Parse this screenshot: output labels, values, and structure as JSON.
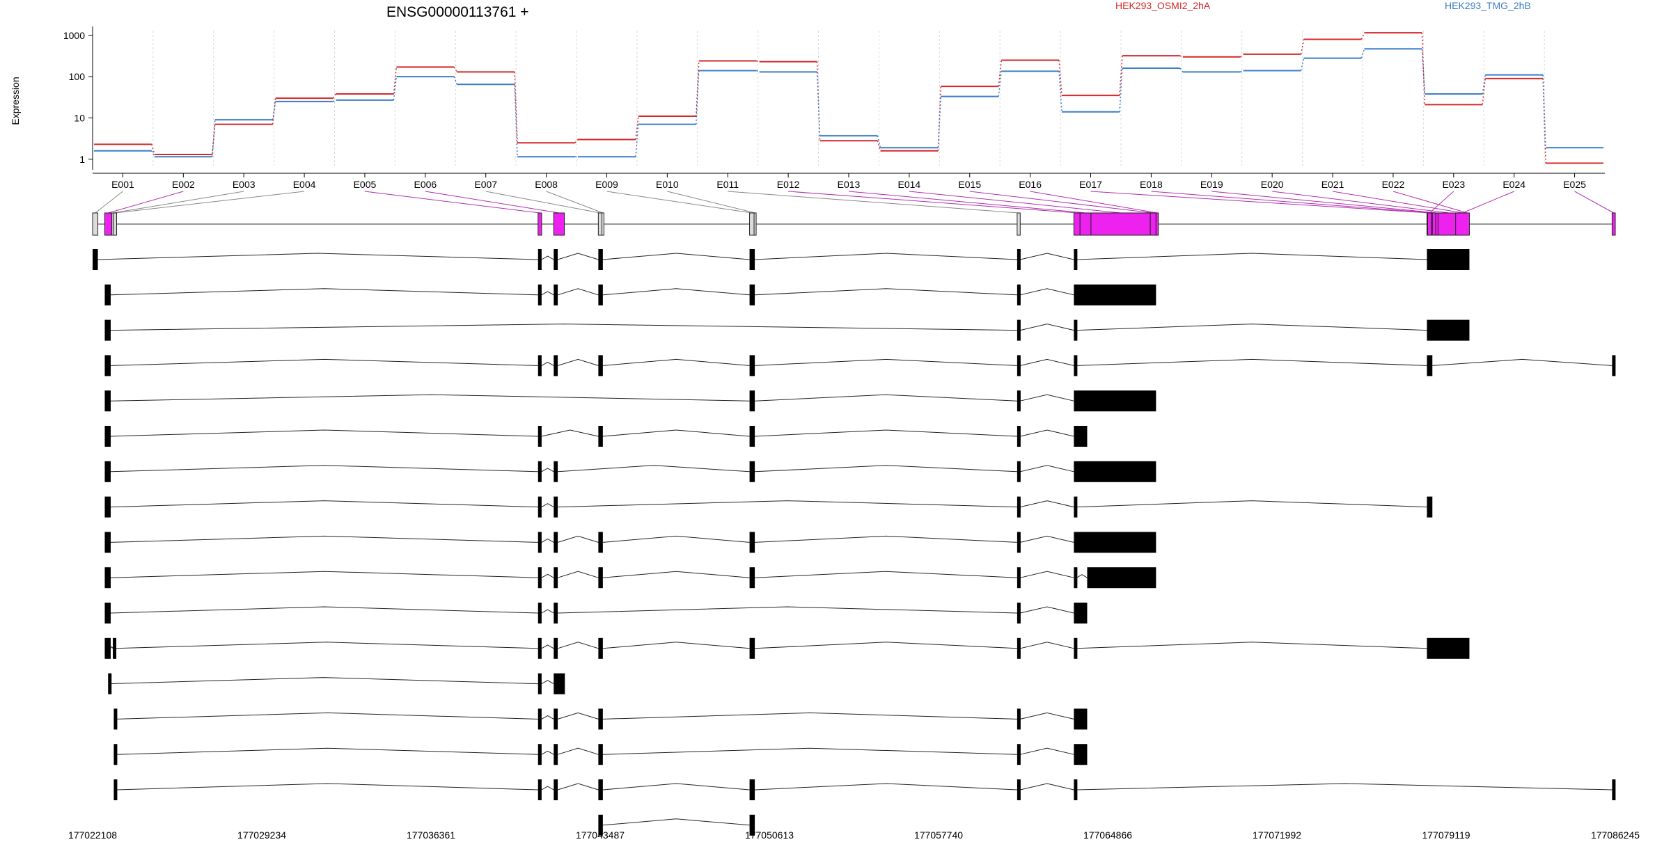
{
  "chart_data": {
    "type": "line",
    "title": "ENSG00000113761 +",
    "ylabel": "Expression",
    "yscale": "log",
    "ylim": [
      0.7,
      1300
    ],
    "yticks": [
      "1",
      "10",
      "100",
      "1000"
    ],
    "ytick_values": [
      1,
      10,
      100,
      1000
    ],
    "categories": [
      "E001",
      "E002",
      "E003",
      "E004",
      "E005",
      "E006",
      "E007",
      "E008",
      "E009",
      "E010",
      "E011",
      "E012",
      "E013",
      "E014",
      "E015",
      "E016",
      "E017",
      "E018",
      "E019",
      "E020",
      "E021",
      "E022",
      "E023",
      "E024",
      "E025"
    ],
    "series": [
      {
        "name": "HEK293_OSMI2_2hA",
        "color": "#d62728",
        "values": [
          2.3,
          1.3,
          7,
          30,
          38,
          170,
          130,
          2.5,
          3,
          11,
          240,
          230,
          2.8,
          1.6,
          58,
          250,
          35,
          320,
          300,
          350,
          800,
          1150,
          21,
          90,
          0.8
        ]
      },
      {
        "name": "HEK293_TMG_2hB",
        "color": "#3a7dc9",
        "values": [
          1.6,
          1.15,
          9,
          25,
          27,
          100,
          65,
          1.15,
          1.15,
          7,
          140,
          130,
          3.7,
          1.9,
          33,
          135,
          14,
          160,
          130,
          140,
          280,
          470,
          38,
          110,
          1.9
        ]
      }
    ],
    "genome_axis": {
      "ticks": [
        "177022108",
        "177029234",
        "177036361",
        "177043487",
        "177050613",
        "177057740",
        "177064866",
        "177071992",
        "177079119",
        "177086245"
      ],
      "tick_values": [
        177022108,
        177029234,
        177036361,
        177043487,
        177050613,
        177057740,
        177064866,
        177071992,
        177079119,
        177086245
      ],
      "range": [
        177022108,
        177086245
      ]
    },
    "exon_bins": [
      {
        "id": "E001",
        "start": 177022108,
        "end": 177022330,
        "sig": false
      },
      {
        "id": "E002",
        "start": 177022620,
        "end": 177022920,
        "sig": true
      },
      {
        "id": "E003",
        "start": 177022920,
        "end": 177022960,
        "sig": false
      },
      {
        "id": "E004",
        "start": 177023000,
        "end": 177023120,
        "sig": false
      },
      {
        "id": "E005",
        "start": 177040870,
        "end": 177041020,
        "sig": true
      },
      {
        "id": "E006",
        "start": 177041530,
        "end": 177041980,
        "sig": true
      },
      {
        "id": "E007",
        "start": 177043410,
        "end": 177043560,
        "sig": false
      },
      {
        "id": "E008",
        "start": 177043560,
        "end": 177043600,
        "sig": false
      },
      {
        "id": "E009",
        "start": 177049780,
        "end": 177049970,
        "sig": false
      },
      {
        "id": "E010",
        "start": 177049970,
        "end": 177050000,
        "sig": false
      },
      {
        "id": "E011",
        "start": 177061050,
        "end": 177061180,
        "sig": false
      },
      {
        "id": "E012",
        "start": 177063440,
        "end": 177063700,
        "sig": true
      },
      {
        "id": "E013",
        "start": 177063700,
        "end": 177064160,
        "sig": true
      },
      {
        "id": "E014",
        "start": 177064160,
        "end": 177066660,
        "sig": true
      },
      {
        "id": "E015",
        "start": 177066660,
        "end": 177066900,
        "sig": true
      },
      {
        "id": "E016",
        "start": 177066900,
        "end": 177067000,
        "sig": true
      },
      {
        "id": "E017",
        "start": 177078310,
        "end": 177078540,
        "sig": true
      },
      {
        "id": "E018",
        "start": 177078540,
        "end": 177078680,
        "sig": true
      },
      {
        "id": "E019",
        "start": 177078680,
        "end": 177078780,
        "sig": true
      },
      {
        "id": "E020",
        "start": 177078780,
        "end": 177079720,
        "sig": true
      },
      {
        "id": "E021",
        "start": 177079720,
        "end": 177079940,
        "sig": true
      },
      {
        "id": "E022",
        "start": 177079940,
        "end": 177080080,
        "sig": true
      },
      {
        "id": "E023",
        "start": 177078340,
        "end": 177078500,
        "sig": true
      },
      {
        "id": "E024",
        "start": 177079520,
        "end": 177080100,
        "sig": true
      },
      {
        "id": "E025",
        "start": 177086110,
        "end": 177086245,
        "sig": true
      }
    ],
    "transcripts": [
      {
        "exons": [
          [
            177022108,
            177022330
          ],
          [
            177040870,
            177041020
          ],
          [
            177041530,
            177041700
          ],
          [
            177043410,
            177043600
          ],
          [
            177049780,
            177050000
          ],
          [
            177061050,
            177061180
          ],
          [
            177063440,
            177063560
          ],
          [
            177078310,
            177080100
          ]
        ]
      },
      {
        "exons": [
          [
            177022620,
            177022870
          ],
          [
            177040870,
            177041020
          ],
          [
            177041530,
            177041700
          ],
          [
            177043410,
            177043600
          ],
          [
            177049780,
            177050000
          ],
          [
            177061050,
            177061180
          ],
          [
            177063440,
            177066900
          ]
        ]
      },
      {
        "exons": [
          [
            177022620,
            177022870
          ],
          [
            177061050,
            177061180
          ],
          [
            177063440,
            177063560
          ],
          [
            177078310,
            177080100
          ]
        ]
      },
      {
        "exons": [
          [
            177022620,
            177022870
          ],
          [
            177040870,
            177041020
          ],
          [
            177041530,
            177041700
          ],
          [
            177043410,
            177043600
          ],
          [
            177049780,
            177050000
          ],
          [
            177061050,
            177061180
          ],
          [
            177063440,
            177063560
          ],
          [
            177078310,
            177078540
          ],
          [
            177086110,
            177086245
          ]
        ]
      },
      {
        "exons": [
          [
            177022620,
            177022870
          ],
          [
            177049780,
            177050000
          ],
          [
            177061050,
            177061180
          ],
          [
            177063440,
            177066900
          ]
        ]
      },
      {
        "exons": [
          [
            177022620,
            177022870
          ],
          [
            177040870,
            177041020
          ],
          [
            177043410,
            177043600
          ],
          [
            177049780,
            177050000
          ],
          [
            177061050,
            177061180
          ],
          [
            177063440,
            177064000
          ]
        ]
      },
      {
        "exons": [
          [
            177022620,
            177022870
          ],
          [
            177040870,
            177041020
          ],
          [
            177041530,
            177041700
          ],
          [
            177049780,
            177050000
          ],
          [
            177061050,
            177061180
          ],
          [
            177063440,
            177066900
          ]
        ]
      },
      {
        "exons": [
          [
            177022620,
            177022870
          ],
          [
            177040870,
            177041020
          ],
          [
            177041530,
            177041700
          ],
          [
            177061050,
            177061180
          ],
          [
            177063440,
            177063560
          ],
          [
            177078310,
            177078540
          ]
        ]
      },
      {
        "exons": [
          [
            177022620,
            177022870
          ],
          [
            177040870,
            177041020
          ],
          [
            177041530,
            177041700
          ],
          [
            177043410,
            177043600
          ],
          [
            177049780,
            177050000
          ],
          [
            177061050,
            177061180
          ],
          [
            177063440,
            177066900
          ]
        ]
      },
      {
        "exons": [
          [
            177022620,
            177022870
          ],
          [
            177040870,
            177041020
          ],
          [
            177041530,
            177041700
          ],
          [
            177043410,
            177043600
          ],
          [
            177049780,
            177050000
          ],
          [
            177061050,
            177061180
          ],
          [
            177063440,
            177063560
          ],
          [
            177064000,
            177066900
          ]
        ]
      },
      {
        "exons": [
          [
            177022620,
            177022870
          ],
          [
            177040870,
            177041020
          ],
          [
            177041530,
            177041700
          ],
          [
            177061050,
            177061180
          ],
          [
            177063440,
            177064000
          ]
        ]
      },
      {
        "exons": [
          [
            177022620,
            177022870
          ],
          [
            177022960,
            177023060
          ],
          [
            177040870,
            177041020
          ],
          [
            177041530,
            177041700
          ],
          [
            177043410,
            177043600
          ],
          [
            177049780,
            177050000
          ],
          [
            177061050,
            177061180
          ],
          [
            177063440,
            177063560
          ],
          [
            177078310,
            177080100
          ]
        ]
      },
      {
        "exons": [
          [
            177022760,
            177022790
          ],
          [
            177040870,
            177041020
          ],
          [
            177041530,
            177042000
          ]
        ]
      },
      {
        "exons": [
          [
            177023000,
            177023120
          ],
          [
            177040870,
            177041020
          ],
          [
            177041530,
            177041700
          ],
          [
            177043410,
            177043600
          ],
          [
            177061050,
            177061180
          ],
          [
            177063440,
            177064000
          ]
        ]
      },
      {
        "exons": [
          [
            177023000,
            177023120
          ],
          [
            177040870,
            177041020
          ],
          [
            177041530,
            177041700
          ],
          [
            177043410,
            177043600
          ],
          [
            177061050,
            177061180
          ],
          [
            177063440,
            177064000
          ]
        ]
      },
      {
        "exons": [
          [
            177023000,
            177023120
          ],
          [
            177040870,
            177041020
          ],
          [
            177041530,
            177041700
          ],
          [
            177043410,
            177043600
          ],
          [
            177049780,
            177050000
          ],
          [
            177061050,
            177061180
          ],
          [
            177063440,
            177063560
          ],
          [
            177086110,
            177086245
          ]
        ]
      },
      {
        "exons": [
          [
            177043410,
            177043600
          ],
          [
            177049780,
            177050000
          ]
        ]
      }
    ],
    "legend_placement": "top-right",
    "grid": "vertical dotted gridlines at exon bins"
  }
}
